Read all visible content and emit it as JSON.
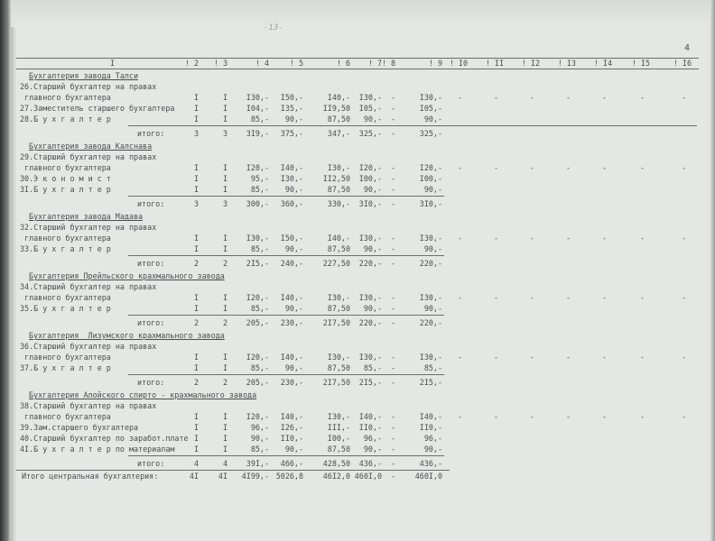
{
  "handwritten_mark": "-13-",
  "page_number": "4",
  "header": [
    "I",
    "2",
    "3",
    "4",
    "5",
    "6",
    "7",
    "8",
    "9",
    "I0",
    "II",
    "I2",
    "I3",
    "I4",
    "I5",
    "I6"
  ],
  "rows": [
    {
      "type": "heading",
      "label": "Бухгалтерия завода Талси"
    },
    {
      "type": "item",
      "label": "26.Старший бухгалтер на правах",
      "label2": " главного бухгалтера",
      "cols": [
        "I",
        "I",
        "I30,-",
        "I50,-",
        "I40,-",
        "I30,-",
        "-",
        "I30,-"
      ],
      "dashes": true
    },
    {
      "type": "item",
      "label": "27.Заместитель старшего бухгалтера",
      "cols": [
        "I",
        "I",
        "I04,-",
        "I35,-",
        "II9,50",
        "I05,-",
        "-",
        "I05,-"
      ]
    },
    {
      "type": "item",
      "label": "28.Б у х г а л т е р",
      "cols": [
        "I",
        "I",
        "85,-",
        "90,-",
        "87,50",
        "90,-",
        "-",
        "90,-"
      ]
    },
    {
      "type": "total",
      "label": "итого:",
      "cols": [
        "3",
        "3",
        "3I9,-",
        "375,-",
        "347,-",
        "325,-",
        "-",
        "325,-"
      ]
    },
    {
      "type": "heading",
      "label": "Бухгалтерия завода Калснава"
    },
    {
      "type": "item",
      "label": "29.Старший бухгалтер на правах",
      "label2": " главного бухгалтера",
      "cols": [
        "I",
        "I",
        "I20,-",
        "I40,-",
        "I30,-",
        "I20,-",
        "-",
        "I20,-"
      ],
      "dashes": true
    },
    {
      "type": "item",
      "label": "30.Э к о н о м и с т",
      "cols": [
        "I",
        "I",
        "95,-",
        "I30,-",
        "II2,50",
        "I00,-",
        "-",
        "I00,-"
      ]
    },
    {
      "type": "item",
      "label": "3I.Б у х г а л т е р",
      "cols": [
        "I",
        "I",
        "85,-",
        "90,-",
        "87,50",
        "90,-",
        "-",
        "90,-"
      ]
    },
    {
      "type": "total",
      "label": "итого:",
      "cols": [
        "3",
        "3",
        "300,-",
        "360,-",
        "330,-",
        "3I0,-",
        "-",
        "3I0,-"
      ]
    },
    {
      "type": "heading",
      "label": "Бухгалтерия завода Мадава"
    },
    {
      "type": "item",
      "label": "32.Старший бухгалтер на правах",
      "label2": " главного бухгалтера",
      "cols": [
        "I",
        "I",
        "I30,-",
        "I50,-",
        "I40,-",
        "I30,-",
        "-",
        "I30,-"
      ],
      "dashes": true
    },
    {
      "type": "item",
      "label": "33.Б у х г а л т е р",
      "cols": [
        "I",
        "I",
        "85,-",
        "90,-",
        "87,50",
        "90,-",
        "-",
        "90,-"
      ]
    },
    {
      "type": "total",
      "label": "итого:",
      "cols": [
        "2",
        "2",
        "2I5,-",
        "240,-",
        "227,50",
        "220,-",
        "-",
        "220,-"
      ]
    },
    {
      "type": "heading",
      "label": "Бухгалтерия Прейльского крахмального завода"
    },
    {
      "type": "item",
      "label": "34.Старший бухгалтер на правах",
      "label2": " главного бухгалтера",
      "cols": [
        "I",
        "I",
        "I20,-",
        "I40,-",
        "I30,-",
        "I30,-",
        "-",
        "I30,-"
      ],
      "dashes": true
    },
    {
      "type": "item",
      "label": "35.Б у х г а л т е р",
      "cols": [
        "I",
        "I",
        "85,-",
        "90,-",
        "87,50",
        "90,-",
        "-",
        "90,-"
      ]
    },
    {
      "type": "total",
      "label": "итого:",
      "cols": [
        "2",
        "2",
        "205,-",
        "230,-",
        "2I7,50",
        "220,-",
        "-",
        "220,-"
      ]
    },
    {
      "type": "heading",
      "label": "Бухгалтерия  Лизумского крахмального завода"
    },
    {
      "type": "item",
      "label": "36.Старший бухгалтер на правах",
      "label2": " главного бухгалтера",
      "cols": [
        "I",
        "I",
        "I20,-",
        "I40,-",
        "I30,-",
        "I30,-",
        "-",
        "I30,-"
      ],
      "dashes": true
    },
    {
      "type": "item",
      "label": "37.Б у х г а л т е р",
      "cols": [
        "I",
        "I",
        "85,-",
        "90,-",
        "87,50",
        "85,-",
        "-",
        "85,-"
      ]
    },
    {
      "type": "total",
      "label": "итого:",
      "cols": [
        "2",
        "2",
        "205,-",
        "230,-",
        "2I7,50",
        "2I5,-",
        "-",
        "2I5,-"
      ]
    },
    {
      "type": "heading",
      "label": "Бухгалтерия Алойского спирто - крахмального завода"
    },
    {
      "type": "item",
      "label": "38.Старший бухгалтер на правах",
      "label2": " главного бухгалтера",
      "cols": [
        "I",
        "I",
        "I20,-",
        "I40,-",
        "I30,-",
        "I40,-",
        "-",
        "I40,-"
      ],
      "dashes": true
    },
    {
      "type": "item",
      "label": "39.Зам.старшего бухгалтера",
      "cols": [
        "I",
        "I",
        "96,-",
        "I26,-",
        "III,-",
        "II0,-",
        "-",
        "II0,-"
      ]
    },
    {
      "type": "item",
      "label": "40.Старший бухгалтер по заработ.плате",
      "cols": [
        "I",
        "I",
        "90,-",
        "II0,-",
        "I00,-",
        "96,-",
        "-",
        "96,-"
      ]
    },
    {
      "type": "item",
      "label": "4I.Б у х г а л т е р по материалам",
      "cols": [
        "I",
        "I",
        "85,-",
        "90,-",
        "87,50",
        "90,-",
        "-",
        "90,-"
      ]
    },
    {
      "type": "total",
      "label": "итого:",
      "cols": [
        "4",
        "4",
        "39I,-",
        "466,-",
        "428,50",
        "436,-",
        "-",
        "436,-"
      ]
    },
    {
      "type": "grand",
      "label": "Итого центральная бухгалтерия:",
      "cols": [
        "4I",
        "4I",
        "4I99,-",
        "5026,8",
        "46I2,0",
        "460I,0",
        "-",
        "460I,0"
      ]
    }
  ],
  "dash": "-"
}
